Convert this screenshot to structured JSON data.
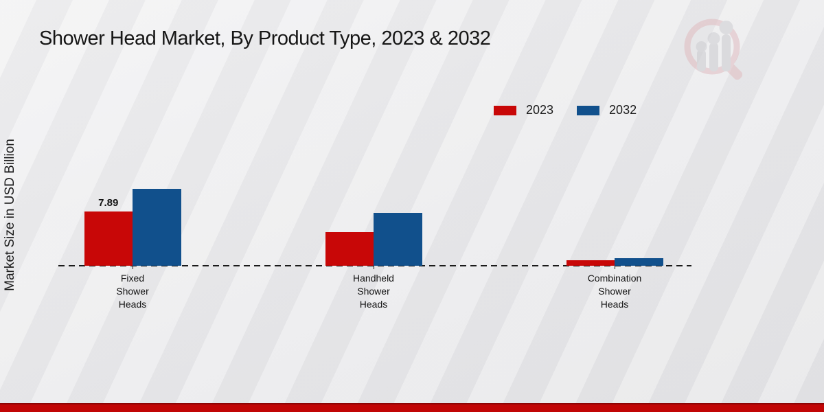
{
  "title": "Shower Head Market, By Product Type, 2023 & 2032",
  "y_axis_label": "Market Size in USD Billion",
  "legend": [
    {
      "label": "2023",
      "color": "#c80707"
    },
    {
      "label": "2032",
      "color": "#11508c"
    }
  ],
  "colors": {
    "series_2023": "#c80707",
    "series_2032": "#11508c",
    "footer_accent": "#c10505",
    "baseline": "#1a1a1a",
    "background": "#ebebed"
  },
  "watermark": {
    "name": "market-research-magnifier-logo"
  },
  "chart_data": {
    "type": "bar",
    "categories": [
      "Fixed Shower Heads",
      "Handheld Shower Heads",
      "Combination Shower Heads"
    ],
    "category_lines": [
      [
        "Fixed",
        "Shower",
        "Heads"
      ],
      [
        "Handheld",
        "Shower",
        "Heads"
      ],
      [
        "Combination",
        "Shower",
        "Heads"
      ]
    ],
    "series": [
      {
        "name": "2023",
        "color": "#c80707",
        "values": [
          7.89,
          4.9,
          0.8
        ]
      },
      {
        "name": "2032",
        "color": "#11508c",
        "values": [
          11.2,
          7.7,
          1.1
        ]
      }
    ],
    "bar_labels": [
      {
        "series_index": 0,
        "category_index": 0,
        "text": "7.89"
      }
    ],
    "title": "Shower Head Market, By Product Type, 2023 & 2032",
    "xlabel": "",
    "ylabel": "Market Size in USD Billion",
    "ylim": [
      0,
      12
    ],
    "grid": false,
    "baseline_style": "dashed",
    "legend_position": "top-right",
    "y_axis_ticks_visible": false
  }
}
